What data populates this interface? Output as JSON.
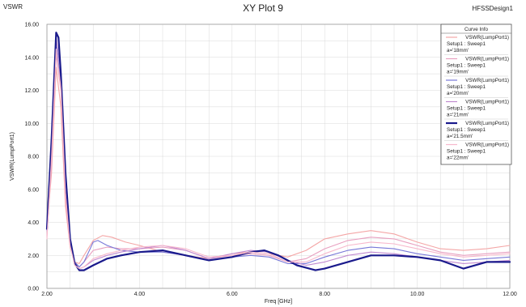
{
  "header": {
    "left_label": "VSWR",
    "title": "XY Plot 9",
    "right_label": "HFSSDesign1"
  },
  "legend": {
    "title": "Curve Info"
  },
  "colors": {
    "grid": "#d9d9d9",
    "frame": "#9a9a9a",
    "legend_border": "#555555"
  },
  "chart_data": {
    "type": "line",
    "title": "XY Plot 9",
    "xlabel": "Freq [GHz]",
    "ylabel": "VSWR(LumpPort1)",
    "xlim": [
      2.0,
      12.0
    ],
    "ylim": [
      0.0,
      16.0
    ],
    "x_ticks": [
      "2.00",
      "4.00",
      "6.00",
      "8.00",
      "10.00",
      "12.00"
    ],
    "y_ticks": [
      "0.00",
      "2.00",
      "4.00",
      "6.00",
      "8.00",
      "10.00",
      "12.00",
      "14.00",
      "16.00"
    ],
    "grid": true,
    "legend_position": "top-right",
    "series": [
      {
        "name": "VSWR(LumpPort1)",
        "setup": "Setup1 : Sweep1",
        "param": "a='18mm'",
        "color": "#f4a6a6",
        "width": 1.1,
        "x": [
          2.0,
          2.1,
          2.2,
          2.3,
          2.4,
          2.5,
          2.6,
          2.7,
          2.8,
          3.0,
          3.2,
          3.4,
          3.7,
          4.0,
          4.5,
          5.0,
          5.5,
          6.0,
          6.4,
          6.8,
          7.2,
          7.6,
          8.0,
          8.5,
          9.0,
          9.5,
          10.0,
          10.5,
          11.0,
          11.5,
          12.0
        ],
        "y": [
          3.6,
          7.0,
          13.4,
          11.0,
          5.0,
          2.5,
          1.6,
          1.5,
          2.0,
          2.9,
          3.2,
          3.1,
          2.8,
          2.6,
          2.2,
          2.0,
          1.8,
          2.1,
          2.2,
          2.1,
          1.9,
          2.3,
          3.0,
          3.3,
          3.5,
          3.3,
          2.8,
          2.4,
          2.3,
          2.4,
          2.6
        ]
      },
      {
        "name": "VSWR(LumpPort1)",
        "setup": "Setup1 : Sweep1",
        "param": "a='19mm'",
        "color": "#e8a0c0",
        "width": 1.1,
        "x": [
          2.0,
          2.1,
          2.2,
          2.3,
          2.4,
          2.5,
          2.6,
          2.7,
          2.8,
          3.0,
          3.3,
          3.6,
          4.0,
          4.5,
          5.0,
          5.5,
          6.0,
          6.4,
          6.8,
          7.2,
          7.6,
          8.0,
          8.5,
          9.0,
          9.5,
          10.0,
          10.5,
          11.0,
          11.5,
          12.0
        ],
        "y": [
          3.2,
          7.5,
          14.2,
          12.0,
          5.5,
          2.6,
          1.6,
          1.3,
          1.6,
          2.3,
          2.5,
          2.4,
          2.4,
          2.5,
          2.3,
          1.8,
          2.0,
          2.1,
          2.0,
          1.6,
          1.8,
          2.4,
          2.9,
          3.1,
          3.0,
          2.6,
          2.2,
          2.0,
          2.1,
          2.2
        ]
      },
      {
        "name": "VSWR(LumpPort1)",
        "setup": "Setup1 : Sweep1",
        "param": "a='20mm'",
        "color": "#7878d8",
        "width": 1.1,
        "x": [
          2.0,
          2.1,
          2.2,
          2.3,
          2.4,
          2.5,
          2.6,
          2.7,
          2.8,
          2.9,
          3.0,
          3.1,
          3.3,
          3.6,
          4.0,
          4.5,
          5.0,
          5.5,
          6.0,
          6.4,
          6.8,
          7.2,
          7.6,
          8.0,
          8.5,
          9.0,
          9.5,
          10.0,
          10.5,
          11.0,
          11.5,
          12.0
        ],
        "y": [
          3.8,
          8.5,
          14.8,
          12.5,
          6.0,
          2.9,
          1.6,
          1.3,
          1.6,
          2.2,
          2.8,
          2.9,
          2.6,
          2.3,
          2.2,
          2.2,
          2.0,
          1.7,
          1.9,
          2.0,
          1.9,
          1.5,
          1.5,
          1.9,
          2.3,
          2.5,
          2.4,
          2.1,
          1.9,
          1.7,
          1.8,
          1.9
        ]
      },
      {
        "name": "VSWR(LumpPort1)",
        "setup": "Setup1 : Sweep1",
        "param": "a='21mm'",
        "color": "#c08ad0",
        "width": 1.1,
        "x": [
          2.0,
          2.1,
          2.2,
          2.3,
          2.4,
          2.5,
          2.6,
          2.7,
          2.8,
          3.0,
          3.3,
          3.6,
          4.0,
          4.5,
          5.0,
          5.5,
          6.0,
          6.4,
          6.8,
          7.2,
          7.6,
          8.0,
          8.5,
          9.0,
          9.5,
          10.0,
          10.5,
          11.0,
          11.5,
          12.0
        ],
        "y": [
          3.5,
          8.8,
          15.2,
          13.0,
          6.2,
          2.8,
          1.5,
          1.2,
          1.3,
          1.7,
          2.0,
          2.2,
          2.4,
          2.6,
          2.3,
          1.8,
          2.1,
          2.3,
          2.2,
          1.7,
          1.4,
          1.6,
          2.0,
          2.2,
          2.1,
          1.9,
          1.7,
          1.5,
          1.6,
          1.7
        ]
      },
      {
        "name": "VSWR(LumpPort1)",
        "setup": "Setup1 : Sweep1",
        "param": "a='21.5mm'",
        "color": "#1a1a8c",
        "width": 2.2,
        "x": [
          2.0,
          2.1,
          2.2,
          2.25,
          2.3,
          2.4,
          2.5,
          2.6,
          2.7,
          2.8,
          3.0,
          3.3,
          3.6,
          4.0,
          4.5,
          5.0,
          5.5,
          6.0,
          6.4,
          6.7,
          7.0,
          7.4,
          7.8,
          8.0,
          8.5,
          9.0,
          9.5,
          10.0,
          10.5,
          11.0,
          11.5,
          12.0
        ],
        "y": [
          3.6,
          9.0,
          15.5,
          15.2,
          13.0,
          7.0,
          3.0,
          1.5,
          1.1,
          1.1,
          1.4,
          1.8,
          2.0,
          2.2,
          2.3,
          2.0,
          1.7,
          1.9,
          2.2,
          2.3,
          2.0,
          1.4,
          1.1,
          1.2,
          1.6,
          2.0,
          2.0,
          1.9,
          1.7,
          1.2,
          1.6,
          1.6
        ]
      },
      {
        "name": "VSWR(LumpPort1)",
        "setup": "Setup1 : Sweep1",
        "param": "a='22mm'",
        "color": "#f7b8cc",
        "width": 1.1,
        "x": [
          2.0,
          2.1,
          2.2,
          2.3,
          2.4,
          2.5,
          2.6,
          2.7,
          2.8,
          3.0,
          3.3,
          3.6,
          4.0,
          4.5,
          5.0,
          5.5,
          6.0,
          6.4,
          6.8,
          7.2,
          7.6,
          8.0,
          8.5,
          9.0,
          9.5,
          10.0,
          10.5,
          11.0,
          11.5,
          12.0
        ],
        "y": [
          3.0,
          8.0,
          14.5,
          12.2,
          5.8,
          2.6,
          1.4,
          1.2,
          1.3,
          1.8,
          2.1,
          2.3,
          2.5,
          2.6,
          2.4,
          1.9,
          2.0,
          2.2,
          2.1,
          1.6,
          1.6,
          2.1,
          2.6,
          2.8,
          2.7,
          2.4,
          2.1,
          1.9,
          2.0,
          2.1
        ]
      }
    ]
  }
}
